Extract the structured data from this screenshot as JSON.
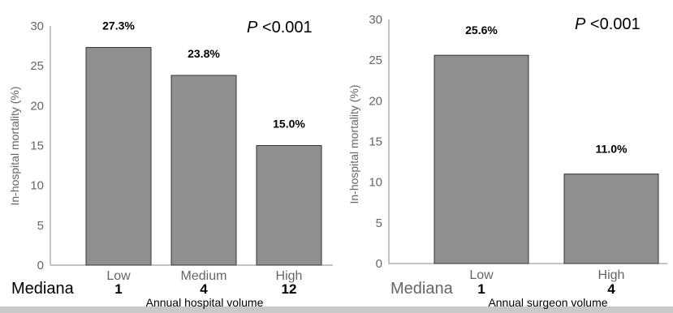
{
  "chart_data": [
    {
      "type": "bar",
      "categories": [
        "Low",
        "Medium",
        "High"
      ],
      "values": [
        27.3,
        23.8,
        15.0
      ],
      "data_labels": [
        "27.3%",
        "23.8%",
        "15.0%"
      ],
      "median_label": "Mediana",
      "median_values": [
        "1",
        "4",
        "12"
      ],
      "p_value": {
        "symbol": "P",
        "text": "<0.001"
      },
      "xlabel": "Annual hospital volume",
      "ylabel": "In-hospital mortality (%)",
      "ylim": [
        0,
        30
      ],
      "yticks": [
        0,
        5,
        10,
        15,
        20,
        25,
        30
      ],
      "grid": false,
      "bar_color": "#8f8f8f"
    },
    {
      "type": "bar",
      "categories": [
        "Low",
        "High"
      ],
      "values": [
        25.6,
        11.0
      ],
      "data_labels": [
        "25.6%",
        "11.0%"
      ],
      "median_label": "Mediana",
      "median_values": [
        "1",
        "4"
      ],
      "p_value": {
        "symbol": "P",
        "text": "<0.001"
      },
      "xlabel": "Annual surgeon volume",
      "ylabel": "In-hospital mortality (%)",
      "ylim": [
        0,
        30
      ],
      "yticks": [
        0,
        5,
        10,
        15,
        20,
        25,
        30
      ],
      "grid": false,
      "bar_color": "#8f8f8f"
    }
  ]
}
